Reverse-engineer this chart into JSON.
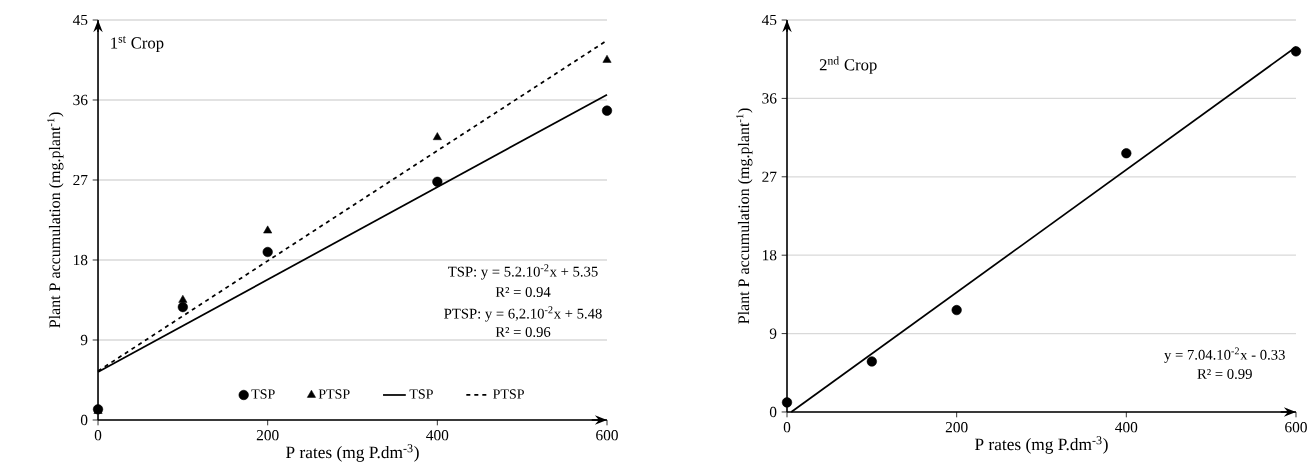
{
  "chart_data": [
    {
      "type": "scatter",
      "xlabel": "P rates (mg P.dm$^{-3}$)",
      "ylabel": "Plant P accumulation (mg.plant$^{-1}$)",
      "xlim": [
        0,
        600
      ],
      "xticks": [
        0,
        200,
        400,
        600
      ],
      "ylim": [
        0,
        45
      ],
      "yticks": [
        0,
        9,
        18,
        27,
        36,
        45
      ],
      "grid": "y",
      "legend": "bottom",
      "annotations": [
        "1$^{st}$ Crop",
        "TSP: y = 5.2.10$^{-2}$x + 5.35",
        "R² = 0.94",
        "PTSP: y = 6,2.10$^{-2}$x + 5.48",
        "R² = 0.96"
      ],
      "series": [
        {
          "name": "TSP",
          "type": "scatter",
          "marker": "circle",
          "color": "#000000",
          "x": [
            0,
            100,
            200,
            400,
            600
          ],
          "values": [
            1.2,
            12.7,
            18.9,
            26.8,
            34.8
          ]
        },
        {
          "name": "PTSP",
          "type": "scatter",
          "marker": "triangle",
          "color": "#000000",
          "x": [
            0,
            100,
            200,
            400,
            600
          ],
          "values": [
            1.0,
            13.5,
            21.3,
            31.8,
            40.5
          ]
        },
        {
          "name": "TSP",
          "type": "line",
          "line_style": "solid",
          "color": "#000000",
          "x": [
            0,
            600
          ],
          "values": [
            5.4,
            36.6
          ]
        },
        {
          "name": "PTSP",
          "type": "line",
          "line_style": "dashed",
          "color": "#000000",
          "x": [
            0,
            600
          ],
          "values": [
            5.5,
            42.7
          ]
        }
      ]
    },
    {
      "type": "scatter",
      "xlabel": "P rates (mg P.dm$^{-3}$)",
      "ylabel": "Plant P accumulation (mg.plant$^{-1}$)",
      "xlim": [
        0,
        600
      ],
      "xticks": [
        0,
        200,
        400,
        600
      ],
      "ylim": [
        0,
        45
      ],
      "yticks": [
        0,
        9,
        18,
        27,
        36,
        45
      ],
      "grid": "y",
      "annotations": [
        "2$^{nd}$ Crop",
        "y = 7.04.10$^{-2}$x - 0.33",
        "R² = 0.99"
      ],
      "series": [
        {
          "type": "scatter",
          "marker": "circle",
          "color": "#000000",
          "x": [
            0,
            100,
            200,
            400,
            600
          ],
          "values": [
            1.1,
            5.8,
            11.7,
            29.7,
            41.4
          ]
        },
        {
          "type": "line",
          "line_style": "solid",
          "color": "#000000",
          "x": [
            5,
            600
          ],
          "values": [
            0,
            41.9
          ]
        }
      ]
    }
  ]
}
